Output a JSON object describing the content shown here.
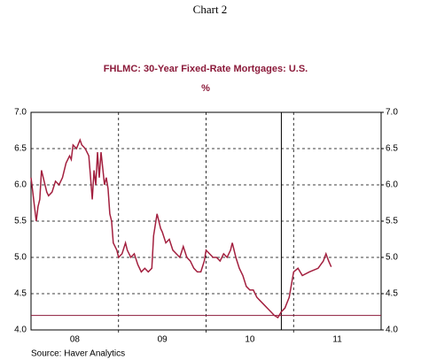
{
  "chart_data": {
    "type": "line",
    "title": "Chart 2",
    "subtitle": "FHLMC: 30-Year Fixed-Rate Mortgages: U.S.",
    "y_label": "%",
    "source": "Source:  Haver Analytics",
    "xlim": [
      2008,
      2012
    ],
    "xticks": [
      {
        "value": 2008.5,
        "label": "08"
      },
      {
        "value": 2009.5,
        "label": "09"
      },
      {
        "value": 2010.5,
        "label": "10"
      },
      {
        "value": 2011.5,
        "label": "11"
      }
    ],
    "xgrid": [
      2009,
      2010,
      2011
    ],
    "ylim": [
      4,
      7
    ],
    "yticks": [
      {
        "value": 4,
        "label": "4.0"
      },
      {
        "value": 4.5,
        "label": "4.5"
      },
      {
        "value": 5,
        "label": "5.0"
      },
      {
        "value": 5.5,
        "label": "5.5"
      },
      {
        "value": 6,
        "label": "6.0"
      },
      {
        "value": 6.5,
        "label": "6.5"
      },
      {
        "value": 7,
        "label": "7.0"
      }
    ],
    "y2lim": [
      4,
      7
    ],
    "y2ticks": [
      {
        "value": 4,
        "label": "4.0"
      },
      {
        "value": 4.5,
        "label": "4.5"
      },
      {
        "value": 5,
        "label": "5.0"
      },
      {
        "value": 5.5,
        "label": "5.5"
      },
      {
        "value": 6,
        "label": "6.0"
      },
      {
        "value": 6.5,
        "label": "6.5"
      },
      {
        "value": 7,
        "label": "7.0"
      }
    ],
    "grid": true,
    "vline": 2010.86,
    "hline": 4.2,
    "series": [
      {
        "name": "FHLMC: 30-Year Fixed-Rate Mortgages: U.S.",
        "color": "#a3203f",
        "x": [
          2008.0,
          2008.02,
          2008.04,
          2008.06,
          2008.08,
          2008.1,
          2008.12,
          2008.14,
          2008.16,
          2008.18,
          2008.2,
          2008.24,
          2008.28,
          2008.32,
          2008.36,
          2008.4,
          2008.44,
          2008.46,
          2008.48,
          2008.52,
          2008.56,
          2008.58,
          2008.62,
          2008.66,
          2008.68,
          2008.7,
          2008.72,
          2008.74,
          2008.76,
          2008.78,
          2008.8,
          2008.84,
          2008.86,
          2008.88,
          2008.9,
          2008.92,
          2008.94,
          2008.96,
          2008.98,
          2009.0,
          2009.04,
          2009.08,
          2009.1,
          2009.14,
          2009.18,
          2009.22,
          2009.26,
          2009.3,
          2009.34,
          2009.38,
          2009.4,
          2009.44,
          2009.48,
          2009.5,
          2009.54,
          2009.58,
          2009.62,
          2009.66,
          2009.7,
          2009.74,
          2009.78,
          2009.82,
          2009.86,
          2009.9,
          2009.94,
          2009.98,
          2010.0,
          2010.04,
          2010.08,
          2010.12,
          2010.16,
          2010.2,
          2010.24,
          2010.28,
          2010.3,
          2010.34,
          2010.38,
          2010.42,
          2010.46,
          2010.5,
          2010.54,
          2010.58,
          2010.62,
          2010.66,
          2010.7,
          2010.74,
          2010.78,
          2010.82,
          2010.86,
          2010.9,
          2010.95,
          2011.0,
          2011.05,
          2011.1,
          2011.18,
          2011.28,
          2011.34,
          2011.37,
          2011.4,
          2011.43
        ],
        "values": [
          6.1,
          5.9,
          5.7,
          5.5,
          5.7,
          5.8,
          6.2,
          6.1,
          6.0,
          5.9,
          5.85,
          5.9,
          6.05,
          6.0,
          6.1,
          6.3,
          6.4,
          6.35,
          6.55,
          6.5,
          6.62,
          6.55,
          6.5,
          6.4,
          6.1,
          5.8,
          6.2,
          6.0,
          6.45,
          6.1,
          6.45,
          6.0,
          6.1,
          5.95,
          5.6,
          5.5,
          5.2,
          5.15,
          5.1,
          5.0,
          5.05,
          5.2,
          5.1,
          5.0,
          5.05,
          4.9,
          4.8,
          4.85,
          4.8,
          4.85,
          5.3,
          5.6,
          5.4,
          5.35,
          5.2,
          5.25,
          5.1,
          5.05,
          5.0,
          5.15,
          5.0,
          4.95,
          4.85,
          4.8,
          4.8,
          4.95,
          5.1,
          5.05,
          5.0,
          5.0,
          4.95,
          5.05,
          5.0,
          5.1,
          5.2,
          5.0,
          4.85,
          4.75,
          4.6,
          4.55,
          4.55,
          4.45,
          4.4,
          4.35,
          4.3,
          4.25,
          4.2,
          4.17,
          4.25,
          4.3,
          4.45,
          4.8,
          4.85,
          4.75,
          4.8,
          4.85,
          4.95,
          5.05,
          4.95,
          4.87
        ]
      }
    ]
  }
}
